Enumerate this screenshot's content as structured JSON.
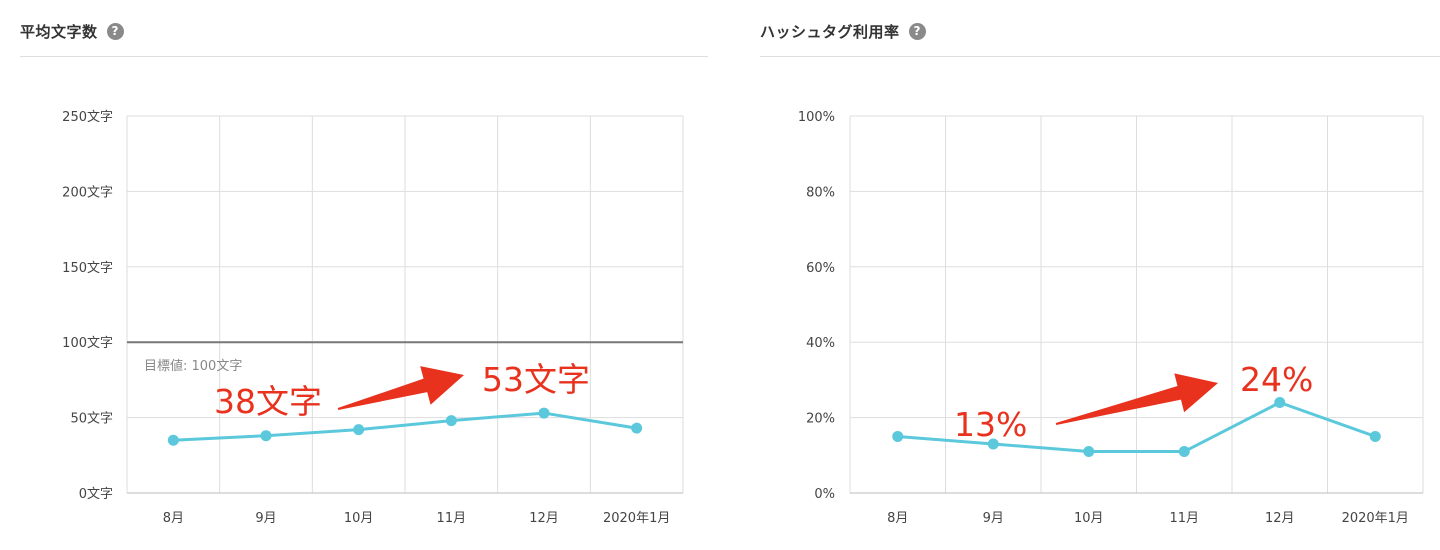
{
  "panels": {
    "avg_chars": {
      "title": "平均文字数",
      "help_icon": "question-circle-icon"
    },
    "hashtag": {
      "title": "ハッシュタグ利用率",
      "help_icon": "question-circle-icon"
    }
  },
  "colors": {
    "line": "#5bc8dc",
    "annotation": "#e8321e",
    "grid": "#dddddd",
    "target": "#777777"
  },
  "chart_data": [
    {
      "type": "line",
      "title": "平均文字数",
      "categories": [
        "8月",
        "9月",
        "10月",
        "11月",
        "12月",
        "2020年1月"
      ],
      "series": [
        {
          "name": "平均文字数",
          "values": [
            35,
            38,
            42,
            48,
            53,
            43
          ]
        }
      ],
      "yticks": [
        "0文字",
        "50文字",
        "100文字",
        "150文字",
        "200文字",
        "250文字"
      ],
      "ylim": [
        0,
        250
      ],
      "target": {
        "value": 100,
        "label": "目標値: 100文字"
      },
      "annotations": {
        "from_label": "38文字",
        "to_label": "53文字"
      }
    },
    {
      "type": "line",
      "title": "ハッシュタグ利用率",
      "categories": [
        "8月",
        "9月",
        "10月",
        "11月",
        "12月",
        "2020年1月"
      ],
      "series": [
        {
          "name": "ハッシュタグ利用率",
          "values": [
            15,
            13,
            11,
            11,
            24,
            15
          ]
        }
      ],
      "yticks": [
        "0%",
        "20%",
        "40%",
        "60%",
        "80%",
        "100%"
      ],
      "ylim": [
        0,
        100
      ],
      "annotations": {
        "from_label": "13%",
        "to_label": "24%"
      }
    }
  ]
}
